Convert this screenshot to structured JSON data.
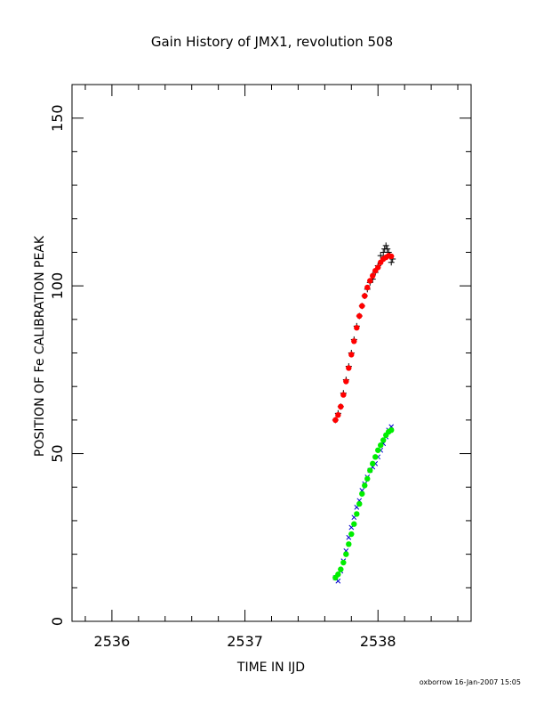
{
  "chart_data": {
    "type": "scatter",
    "title": "Gain History of JMX1, revolution 508",
    "xlabel": "TIME IN IJD",
    "ylabel": "POSITION OF Fe CALIBRATION PEAK",
    "xlim": [
      2535.7,
      2538.7
    ],
    "ylim": [
      0,
      160
    ],
    "xticks": [
      2536,
      2537,
      2538
    ],
    "yticks": [
      0,
      50,
      100,
      150
    ],
    "grid": false,
    "colors": {
      "upper_raw": "#000000",
      "upper_fit": "#ff0000",
      "lower_raw": "#0000cc",
      "lower_fit": "#00ee00"
    },
    "series": [
      {
        "marker": "plus",
        "color": "#000000",
        "x": [
          2537.68,
          2537.7,
          2537.72,
          2537.74,
          2537.76,
          2537.78,
          2537.8,
          2537.82,
          2537.84,
          2537.86,
          2537.88,
          2537.9,
          2537.92,
          2537.94,
          2537.96,
          2537.98,
          2538.0,
          2538.02,
          2538.04,
          2538.05,
          2538.06,
          2538.07,
          2538.08,
          2538.09,
          2538.1,
          2538.11
        ],
        "y": [
          60,
          62,
          64,
          68,
          72,
          76,
          80,
          84,
          88,
          91,
          94,
          97,
          99,
          101,
          102,
          104,
          106,
          109,
          110,
          111,
          112,
          111,
          110,
          109,
          107,
          108
        ]
      },
      {
        "marker": "dot",
        "color": "#ff0000",
        "x": [
          2537.68,
          2537.7,
          2537.72,
          2537.74,
          2537.76,
          2537.78,
          2537.8,
          2537.82,
          2537.84,
          2537.86,
          2537.88,
          2537.9,
          2537.92,
          2537.94,
          2537.96,
          2537.98,
          2538.0,
          2538.02,
          2538.04,
          2538.06,
          2538.08,
          2538.1
        ],
        "y": [
          60,
          61.5,
          64,
          67.5,
          71.5,
          75.5,
          79.5,
          83.5,
          87.5,
          91,
          94,
          97,
          99.5,
          101.5,
          103,
          104.5,
          105.5,
          107,
          108,
          108.5,
          109,
          108.8
        ]
      },
      {
        "marker": "cross",
        "color": "#0000cc",
        "x": [
          2537.68,
          2537.7,
          2537.72,
          2537.74,
          2537.76,
          2537.78,
          2537.8,
          2537.82,
          2537.84,
          2537.86,
          2537.88,
          2537.9,
          2537.92,
          2537.94,
          2537.96,
          2537.98,
          2538.0,
          2538.02,
          2538.04,
          2538.06,
          2538.08,
          2538.1
        ],
        "y": [
          13,
          12,
          15,
          18,
          21,
          25,
          28,
          31,
          34,
          36,
          39,
          41,
          43,
          45,
          46,
          47,
          49,
          51,
          53,
          55,
          57,
          58
        ]
      },
      {
        "marker": "dot",
        "color": "#00ee00",
        "x": [
          2537.68,
          2537.7,
          2537.72,
          2537.74,
          2537.76,
          2537.78,
          2537.8,
          2537.82,
          2537.84,
          2537.86,
          2537.88,
          2537.9,
          2537.92,
          2537.94,
          2537.96,
          2537.98,
          2538.0,
          2538.02,
          2538.04,
          2538.06,
          2538.08,
          2538.1
        ],
        "y": [
          13,
          14,
          15.5,
          17.5,
          20,
          23,
          26,
          29,
          32,
          35,
          38,
          40.5,
          42.5,
          45,
          47,
          49,
          51,
          52.5,
          54,
          55.5,
          56.5,
          57
        ]
      }
    ]
  },
  "footer": {
    "credit": "oxborrow 16-Jan-2007 15:05"
  }
}
